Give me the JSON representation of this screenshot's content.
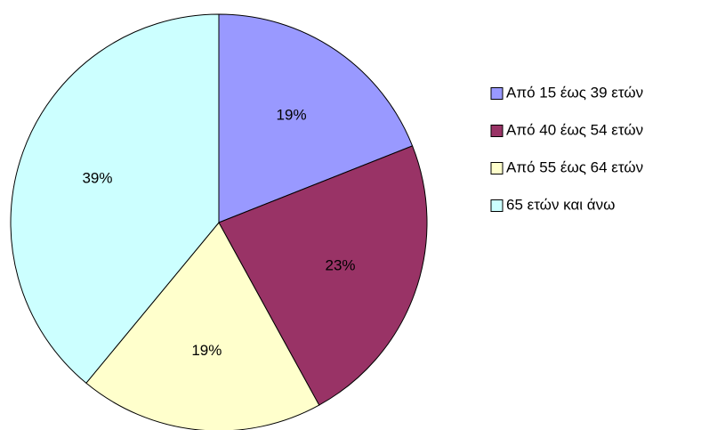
{
  "chart_data": {
    "type": "pie",
    "categories": [
      "Από 15 έως 39 ετών",
      "Από 40 έως 54 ετών",
      "Από 55 έως 64 ετών",
      "65 ετών και άνω"
    ],
    "values": [
      19,
      23,
      19,
      39
    ],
    "value_labels": [
      "19%",
      "23%",
      "19%",
      "39%"
    ],
    "colors": [
      "#9999ff",
      "#993366",
      "#ffffcc",
      "#ccffff"
    ],
    "legend": "right"
  }
}
